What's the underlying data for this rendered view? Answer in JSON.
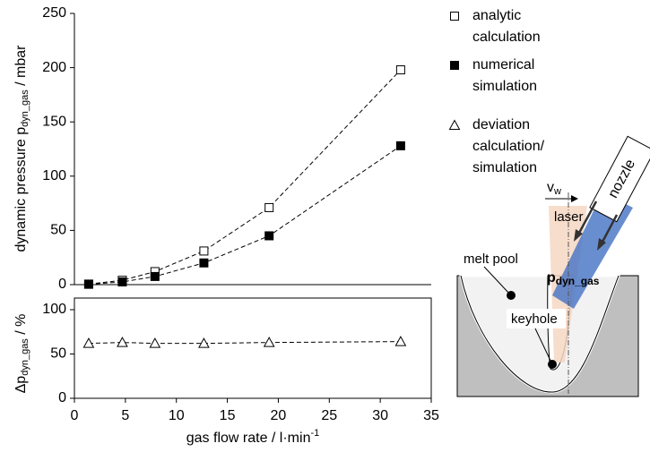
{
  "chart_data": [
    {
      "type": "scatter",
      "y_label": [
        "dynamic pressure p",
        "dyn_gas",
        " / mbar"
      ],
      "x": [
        1.4,
        4.7,
        7.9,
        12.7,
        19.1,
        32.0
      ],
      "xlim": [
        0,
        35
      ],
      "ylim": [
        0,
        250
      ],
      "yticks": [
        0,
        50,
        100,
        150,
        200,
        250
      ],
      "series": [
        {
          "name": "analytic calculation",
          "marker": "open-square",
          "color": "#000000",
          "values": [
            0.5,
            4,
            12,
            31,
            71,
            198
          ]
        },
        {
          "name": "numerical simulation",
          "marker": "filled-square",
          "color": "#000000",
          "values": [
            0.3,
            2.5,
            7.5,
            20,
            45,
            128
          ]
        }
      ]
    },
    {
      "type": "scatter",
      "y_label": [
        "Δp",
        "dyn_gas",
        " / %"
      ],
      "x_label": [
        "gas flow rate / l·min",
        "-1"
      ],
      "x": [
        1.4,
        4.7,
        7.9,
        12.7,
        19.1,
        32.0
      ],
      "xlim": [
        0,
        35
      ],
      "xticks": [
        0,
        5,
        10,
        15,
        20,
        25,
        30,
        35
      ],
      "ylim": [
        0,
        100
      ],
      "yticks": [
        0,
        50,
        100
      ],
      "series": [
        {
          "name": "deviation calculation/ simulation",
          "marker": "open-triangle",
          "color": "#000000",
          "values": [
            62,
            63,
            62,
            62,
            63,
            64
          ]
        }
      ]
    }
  ],
  "diagram": {
    "nozzle": "nozzle",
    "laser": "laser",
    "velocity": [
      "v",
      "w"
    ],
    "melt_pool": "melt pool",
    "keyhole": "keyhole",
    "pressure": [
      "p",
      "dyn_gas"
    ]
  }
}
